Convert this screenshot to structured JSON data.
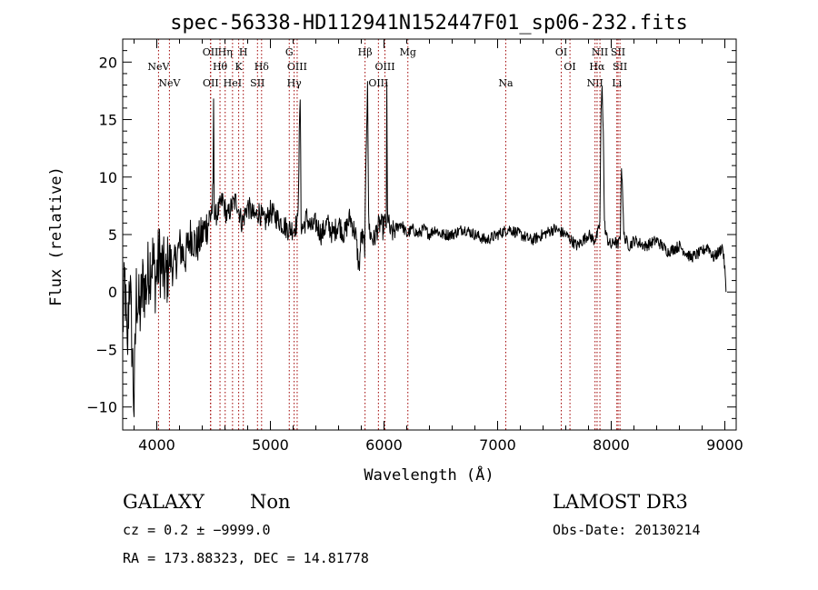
{
  "chart_data": {
    "type": "line",
    "title": "spec-56338-HD112941N152447F01_sp06-232.fits",
    "xlabel": "Wavelength (Å)",
    "ylabel": "Flux (relative)",
    "xlim": [
      3700,
      9100
    ],
    "ylim": [
      -12,
      22
    ],
    "xticks": [
      4000,
      5000,
      6000,
      7000,
      8000,
      9000
    ],
    "xtick_labels": [
      "4000",
      "5000",
      "6000",
      "7000",
      "8000",
      "9000"
    ],
    "yticks": [
      -10,
      -5,
      0,
      5,
      10,
      15,
      20
    ],
    "ytick_labels": [
      "−10",
      "−5",
      "0",
      "5",
      "10",
      "15",
      "20"
    ],
    "grid": false,
    "series": [
      {
        "color": "#000000",
        "x": [
          3700,
          3720,
          3740,
          3760,
          3780,
          3800,
          3820,
          3850,
          3880,
          3900,
          3930,
          3960,
          3990,
          4020,
          4050,
          4080,
          4110,
          4150,
          4200,
          4250,
          4300,
          4350,
          4400,
          4450,
          4480,
          4495,
          4500,
          4505,
          4510,
          4540,
          4580,
          4620,
          4660,
          4700,
          4750,
          4800,
          4860,
          4900,
          4950,
          5000,
          5050,
          5100,
          5150,
          5200,
          5240,
          5262,
          5270,
          5285,
          5320,
          5360,
          5400,
          5450,
          5500,
          5550,
          5600,
          5650,
          5700,
          5750,
          5780,
          5800,
          5830,
          5855,
          5865,
          5880,
          5910,
          5940,
          5970,
          5990,
          6000,
          6020,
          6025,
          6030,
          6040,
          6060,
          6100,
          6150,
          6200,
          6250,
          6300,
          6350,
          6400,
          6450,
          6500,
          6600,
          6700,
          6800,
          6900,
          7000,
          7100,
          7200,
          7300,
          7400,
          7500,
          7600,
          7700,
          7750,
          7800,
          7850,
          7880,
          7900,
          7910,
          7920,
          7930,
          7940,
          7955,
          7970,
          8000,
          8030,
          8060,
          8080,
          8090,
          8100,
          8110,
          8130,
          8160,
          8200,
          8300,
          8400,
          8500,
          8600,
          8700,
          8800,
          8850,
          8900,
          8950,
          8980,
          9000,
          9010
        ],
        "y": [
          -3,
          1,
          -6,
          2,
          -4,
          -10,
          0,
          -2,
          1,
          0,
          2,
          3,
          1,
          3,
          2,
          1,
          3,
          2,
          4,
          3,
          5,
          4,
          5,
          6,
          7,
          8,
          17,
          8,
          6.5,
          7,
          8,
          6.5,
          7.5,
          8,
          6,
          7.5,
          6.5,
          7,
          6,
          7,
          6.5,
          6,
          5.5,
          5.5,
          6,
          17,
          6,
          5.5,
          6.5,
          5.5,
          6,
          5,
          6,
          5,
          6,
          5,
          6.5,
          5,
          2,
          5,
          4,
          19,
          6,
          5,
          4.5,
          5.5,
          6,
          5.5,
          6,
          6,
          18,
          7,
          6,
          5,
          5.5,
          6,
          5,
          5.5,
          5,
          5.5,
          5,
          5.5,
          5,
          5,
          5.5,
          5,
          4.5,
          5,
          5.5,
          5,
          4.5,
          5,
          5.5,
          5,
          4,
          4.5,
          5,
          4.5,
          5,
          6,
          15.5,
          18,
          14,
          6,
          5,
          4.5,
          4,
          4.5,
          4,
          5,
          11,
          9,
          5,
          4.5,
          4,
          4.5,
          4,
          4.5,
          3.5,
          4,
          3,
          3.5,
          4,
          3,
          3.5,
          4,
          2,
          0
        ]
      }
    ],
    "lines": [
      {
        "name": "NeV",
        "x": 3426,
        "row": 3
      },
      {
        "name": "NeV",
        "x": 3346,
        "row": 2
      },
      {
        "name": "OII",
        "x": 3727,
        "row": 1
      },
      {
        "name": "OII",
        "x": 3729,
        "row": 3
      },
      {
        "name": "Hη",
        "x": 3835,
        "row": 1
      },
      {
        "name": "Hθ",
        "x": 3797,
        "row": 2
      },
      {
        "name": "HeI",
        "x": 3889,
        "row": 3
      },
      {
        "name": "H",
        "x": 3968,
        "row": 1
      },
      {
        "name": "K",
        "x": 3934,
        "row": 2
      },
      {
        "name": "Hδ",
        "x": 4102,
        "row": 2
      },
      {
        "name": "SII",
        "x": 4072,
        "row": 3
      },
      {
        "name": "G",
        "x": 4305,
        "row": 1
      },
      {
        "name": "OIII",
        "x": 4363,
        "row": 2
      },
      {
        "name": "Hγ",
        "x": 4341,
        "row": 3
      },
      {
        "name": "Hβ",
        "x": 4861,
        "row": 1
      },
      {
        "name": "OIII",
        "x": 4959,
        "row": 3
      },
      {
        "name": "OIII",
        "x": 5007,
        "row": 2
      },
      {
        "name": "Mg",
        "x": 5175,
        "row": 1
      },
      {
        "name": "Na",
        "x": 5893,
        "row": 3
      },
      {
        "name": "OI",
        "x": 6300,
        "row": 1
      },
      {
        "name": "OI",
        "x": 6364,
        "row": 2
      },
      {
        "name": "NII",
        "x": 6548,
        "row": 3
      },
      {
        "name": "NII",
        "x": 6584,
        "row": 1
      },
      {
        "name": "Hα",
        "x": 6563,
        "row": 2
      },
      {
        "name": "SII",
        "x": 6717,
        "row": 1
      },
      {
        "name": "SII",
        "x": 6731,
        "row": 2
      },
      {
        "name": "Li",
        "x": 6708,
        "row": 3
      }
    ],
    "redshift_for_lines": 0.2,
    "line_color": "#a00000"
  },
  "info": {
    "class": "GALAXY",
    "subclass": "Non",
    "cz": "cz = 0.2 ± −9999.0",
    "radec": "RA = 173.88323, DEC =  14.81778",
    "survey": "LAMOST DR3",
    "obsdate": "Obs-Date: 20130214"
  }
}
